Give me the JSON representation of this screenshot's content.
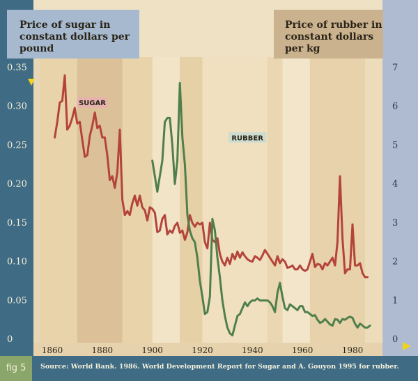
{
  "sugar_axis_title": "Price of sugar in constant dollars per pound",
  "rubber_axis_title": "Price of rubber in constant dollars per kg",
  "fig_label": "fig 5",
  "source": "Source:  World Bank. 1986. World Development Report for Sugar and A. Gouyon 1995 for rubber.",
  "colors": {
    "sugar": "#b4443b",
    "rubber": "#4f7f4a",
    "sugar_tag": "#e7b2ae",
    "rubber_tag": "#cddccf"
  },
  "chart_data": {
    "type": "line",
    "xlabel": "",
    "x_ticks": [
      "1860",
      "1880",
      "1900",
      "1920",
      "1940",
      "1960",
      "1980"
    ],
    "xlim": [
      1855,
      1992
    ],
    "left_axis": {
      "label": "Price of sugar in constant dollars per pound",
      "ylim": [
        0,
        0.35
      ],
      "ticks": [
        "0",
        "0.05",
        "0.10",
        "0.15",
        "0.20",
        "0.25",
        "0.30",
        "0.35"
      ]
    },
    "right_axis": {
      "label": "Price of rubber in constant dollars per kg",
      "ylim": [
        0,
        7
      ],
      "ticks": [
        "0",
        "1",
        "2",
        "3",
        "4",
        "5",
        "6",
        "7"
      ]
    },
    "series": [
      {
        "name": "SUGAR",
        "axis": "left",
        "points": [
          [
            1861,
            0.26
          ],
          [
            1862,
            0.28
          ],
          [
            1863,
            0.305
          ],
          [
            1864,
            0.307
          ],
          [
            1865,
            0.34
          ],
          [
            1866,
            0.27
          ],
          [
            1867,
            0.275
          ],
          [
            1868,
            0.285
          ],
          [
            1869,
            0.298
          ],
          [
            1870,
            0.278
          ],
          [
            1871,
            0.28
          ],
          [
            1872,
            0.257
          ],
          [
            1873,
            0.235
          ],
          [
            1874,
            0.237
          ],
          [
            1875,
            0.262
          ],
          [
            1876,
            0.275
          ],
          [
            1877,
            0.292
          ],
          [
            1878,
            0.272
          ],
          [
            1879,
            0.275
          ],
          [
            1880,
            0.26
          ],
          [
            1881,
            0.26
          ],
          [
            1882,
            0.237
          ],
          [
            1883,
            0.205
          ],
          [
            1884,
            0.21
          ],
          [
            1885,
            0.195
          ],
          [
            1886,
            0.215
          ],
          [
            1887,
            0.27
          ],
          [
            1888,
            0.18
          ],
          [
            1889,
            0.16
          ],
          [
            1890,
            0.165
          ],
          [
            1891,
            0.16
          ],
          [
            1892,
            0.175
          ],
          [
            1893,
            0.185
          ],
          [
            1894,
            0.172
          ],
          [
            1895,
            0.185
          ],
          [
            1896,
            0.17
          ],
          [
            1897,
            0.166
          ],
          [
            1898,
            0.153
          ],
          [
            1899,
            0.17
          ],
          [
            1900,
            0.168
          ],
          [
            1901,
            0.163
          ],
          [
            1902,
            0.138
          ],
          [
            1903,
            0.14
          ],
          [
            1904,
            0.155
          ],
          [
            1905,
            0.16
          ],
          [
            1906,
            0.135
          ],
          [
            1907,
            0.14
          ],
          [
            1908,
            0.137
          ],
          [
            1909,
            0.146
          ],
          [
            1910,
            0.15
          ],
          [
            1911,
            0.137
          ],
          [
            1912,
            0.14
          ],
          [
            1913,
            0.128
          ],
          [
            1914,
            0.138
          ],
          [
            1915,
            0.16
          ],
          [
            1916,
            0.15
          ],
          [
            1917,
            0.145
          ],
          [
            1918,
            0.15
          ],
          [
            1919,
            0.148
          ],
          [
            1920,
            0.15
          ],
          [
            1921,
            0.125
          ],
          [
            1922,
            0.117
          ],
          [
            1923,
            0.15
          ],
          [
            1924,
            0.128
          ],
          [
            1925,
            0.125
          ],
          [
            1926,
            0.13
          ],
          [
            1927,
            0.11
          ],
          [
            1928,
            0.1
          ],
          [
            1929,
            0.095
          ],
          [
            1930,
            0.105
          ],
          [
            1931,
            0.097
          ],
          [
            1932,
            0.11
          ],
          [
            1933,
            0.103
          ],
          [
            1934,
            0.113
          ],
          [
            1935,
            0.105
          ],
          [
            1936,
            0.112
          ],
          [
            1937,
            0.107
          ],
          [
            1938,
            0.103
          ],
          [
            1939,
            0.101
          ],
          [
            1940,
            0.1
          ],
          [
            1941,
            0.107
          ],
          [
            1942,
            0.105
          ],
          [
            1943,
            0.102
          ],
          [
            1944,
            0.108
          ],
          [
            1945,
            0.115
          ],
          [
            1946,
            0.11
          ],
          [
            1947,
            0.105
          ],
          [
            1948,
            0.1
          ],
          [
            1949,
            0.095
          ],
          [
            1950,
            0.107
          ],
          [
            1951,
            0.098
          ],
          [
            1952,
            0.103
          ],
          [
            1953,
            0.1
          ],
          [
            1954,
            0.092
          ],
          [
            1955,
            0.093
          ],
          [
            1956,
            0.095
          ],
          [
            1957,
            0.09
          ],
          [
            1958,
            0.09
          ],
          [
            1959,
            0.095
          ],
          [
            1960,
            0.09
          ],
          [
            1961,
            0.088
          ],
          [
            1962,
            0.09
          ],
          [
            1963,
            0.1
          ],
          [
            1964,
            0.11
          ],
          [
            1965,
            0.093
          ],
          [
            1966,
            0.097
          ],
          [
            1967,
            0.096
          ],
          [
            1968,
            0.09
          ],
          [
            1969,
            0.098
          ],
          [
            1970,
            0.095
          ],
          [
            1971,
            0.1
          ],
          [
            1972,
            0.105
          ],
          [
            1973,
            0.095
          ],
          [
            1974,
            0.125
          ],
          [
            1975,
            0.21
          ],
          [
            1976,
            0.13
          ],
          [
            1977,
            0.085
          ],
          [
            1978,
            0.09
          ],
          [
            1979,
            0.09
          ],
          [
            1980,
            0.148
          ],
          [
            1981,
            0.095
          ],
          [
            1982,
            0.095
          ],
          [
            1983,
            0.098
          ],
          [
            1984,
            0.085
          ],
          [
            1985,
            0.08
          ],
          [
            1986,
            0.08
          ]
        ]
      },
      {
        "name": "RUBBER",
        "axis": "right",
        "points": [
          [
            1900,
            4.6
          ],
          [
            1901,
            4.2
          ],
          [
            1902,
            3.8
          ],
          [
            1903,
            4.2
          ],
          [
            1904,
            4.6
          ],
          [
            1905,
            5.6
          ],
          [
            1906,
            5.7
          ],
          [
            1907,
            5.7
          ],
          [
            1908,
            5.0
          ],
          [
            1909,
            4.0
          ],
          [
            1910,
            4.6
          ],
          [
            1911,
            6.6
          ],
          [
            1912,
            5.2
          ],
          [
            1913,
            4.5
          ],
          [
            1914,
            3.2
          ],
          [
            1915,
            2.8
          ],
          [
            1916,
            2.6
          ],
          [
            1917,
            2.5
          ],
          [
            1918,
            2.1
          ],
          [
            1919,
            1.5
          ],
          [
            1920,
            1.1
          ],
          [
            1921,
            0.65
          ],
          [
            1922,
            0.7
          ],
          [
            1923,
            1.1
          ],
          [
            1924,
            3.1
          ],
          [
            1925,
            2.8
          ],
          [
            1926,
            2.1
          ],
          [
            1927,
            1.6
          ],
          [
            1928,
            1.0
          ],
          [
            1929,
            0.6
          ],
          [
            1930,
            0.3
          ],
          [
            1931,
            0.15
          ],
          [
            1932,
            0.1
          ],
          [
            1933,
            0.35
          ],
          [
            1934,
            0.6
          ],
          [
            1935,
            0.65
          ],
          [
            1936,
            0.8
          ],
          [
            1937,
            0.95
          ],
          [
            1938,
            0.85
          ],
          [
            1939,
            0.95
          ],
          [
            1940,
            1.0
          ],
          [
            1941,
            1.0
          ],
          [
            1942,
            1.05
          ],
          [
            1943,
            1.0
          ],
          [
            1944,
            1.0
          ],
          [
            1945,
            1.0
          ],
          [
            1946,
            1.0
          ],
          [
            1947,
            0.95
          ],
          [
            1948,
            0.85
          ],
          [
            1949,
            0.7
          ],
          [
            1950,
            1.2
          ],
          [
            1951,
            1.45
          ],
          [
            1952,
            1.1
          ],
          [
            1953,
            0.8
          ],
          [
            1954,
            0.75
          ],
          [
            1955,
            0.9
          ],
          [
            1956,
            0.85
          ],
          [
            1957,
            0.8
          ],
          [
            1958,
            0.75
          ],
          [
            1959,
            0.85
          ],
          [
            1960,
            0.85
          ],
          [
            1961,
            0.7
          ],
          [
            1962,
            0.7
          ],
          [
            1963,
            0.65
          ],
          [
            1964,
            0.6
          ],
          [
            1965,
            0.62
          ],
          [
            1966,
            0.5
          ],
          [
            1967,
            0.42
          ],
          [
            1968,
            0.45
          ],
          [
            1969,
            0.52
          ],
          [
            1970,
            0.45
          ],
          [
            1971,
            0.38
          ],
          [
            1972,
            0.35
          ],
          [
            1973,
            0.52
          ],
          [
            1974,
            0.5
          ],
          [
            1975,
            0.42
          ],
          [
            1976,
            0.52
          ],
          [
            1977,
            0.5
          ],
          [
            1978,
            0.55
          ],
          [
            1979,
            0.58
          ],
          [
            1980,
            0.55
          ],
          [
            1981,
            0.4
          ],
          [
            1982,
            0.3
          ],
          [
            1983,
            0.4
          ],
          [
            1984,
            0.35
          ],
          [
            1985,
            0.3
          ],
          [
            1986,
            0.3
          ],
          [
            1987,
            0.35
          ]
        ]
      }
    ],
    "annotations": [
      {
        "text": "SUGAR",
        "x": 1876,
        "y_left": 0.305
      },
      {
        "text": "RUBBER",
        "x": 1938,
        "y_left": 0.26
      }
    ]
  }
}
